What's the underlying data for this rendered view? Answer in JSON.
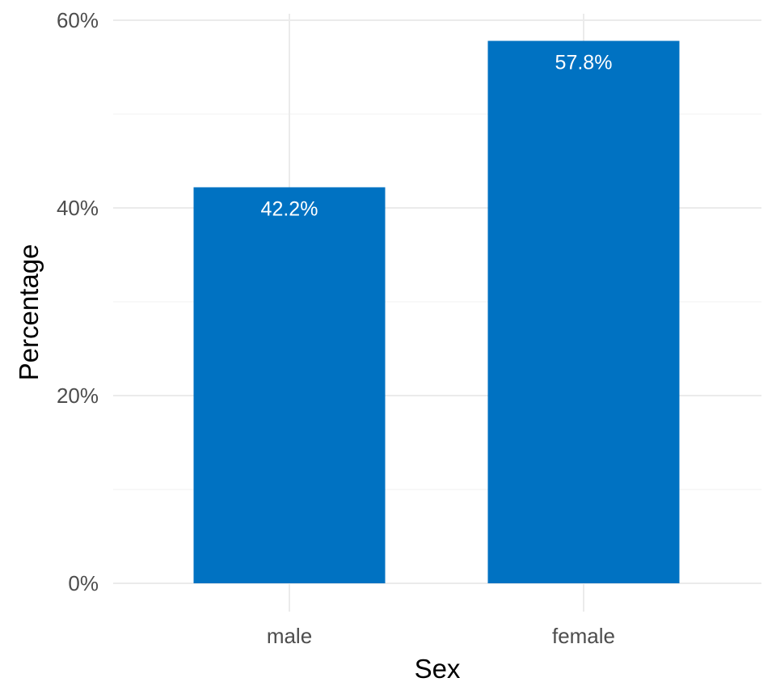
{
  "chart_data": {
    "type": "bar",
    "categories": [
      "male",
      "female"
    ],
    "values": [
      42.2,
      57.8
    ],
    "data_labels": [
      "42.2%",
      "57.8%"
    ],
    "title": "",
    "xlabel": "Sex",
    "ylabel": "Percentage",
    "ylim": [
      0,
      60
    ],
    "y_ticks": [
      0,
      20,
      40,
      60
    ],
    "y_tick_labels": [
      "0%",
      "20%",
      "40%",
      "60%"
    ],
    "y_minor_ticks": [
      10,
      30,
      50
    ],
    "grid": true,
    "legend": "none",
    "bar_color": "#0072C2",
    "label_color": "#FFFFFF"
  }
}
